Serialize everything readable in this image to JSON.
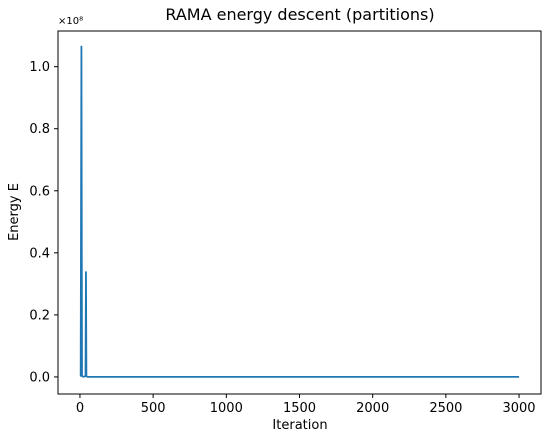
{
  "chart_data": {
    "type": "line",
    "title": "RAMA energy descent (partitions)",
    "xlabel": "Iteration",
    "ylabel": "Energy E",
    "y_offset_text": "×10⁸",
    "xlim": [
      -150,
      3150
    ],
    "ylim": [
      -0.055,
      1.115
    ],
    "x_ticks": [
      0,
      500,
      1000,
      1500,
      2000,
      2500,
      3000
    ],
    "x_tick_labels": [
      "0",
      "500",
      "1000",
      "1500",
      "2000",
      "2500",
      "3000"
    ],
    "y_ticks": [
      0.0,
      0.2,
      0.4,
      0.6,
      0.8,
      1.0
    ],
    "y_tick_labels": [
      "0.0",
      "0.2",
      "0.4",
      "0.6",
      "0.8",
      "1.0"
    ],
    "grid": false,
    "series": [
      {
        "color": "#1f77b4",
        "x": [
          0,
          5,
          10,
          14,
          20,
          30,
          38,
          41,
          44,
          50,
          60,
          100,
          200,
          500,
          1000,
          2000,
          3000
        ],
        "y": [
          0.004,
          0.004,
          1.065,
          0.003,
          0.001,
          0.001,
          0.003,
          0.338,
          0.002,
          0.0005,
          0.0003,
          0.0002,
          0.0001,
          0.0001,
          0.0001,
          0.0001,
          0.0001
        ]
      }
    ]
  }
}
